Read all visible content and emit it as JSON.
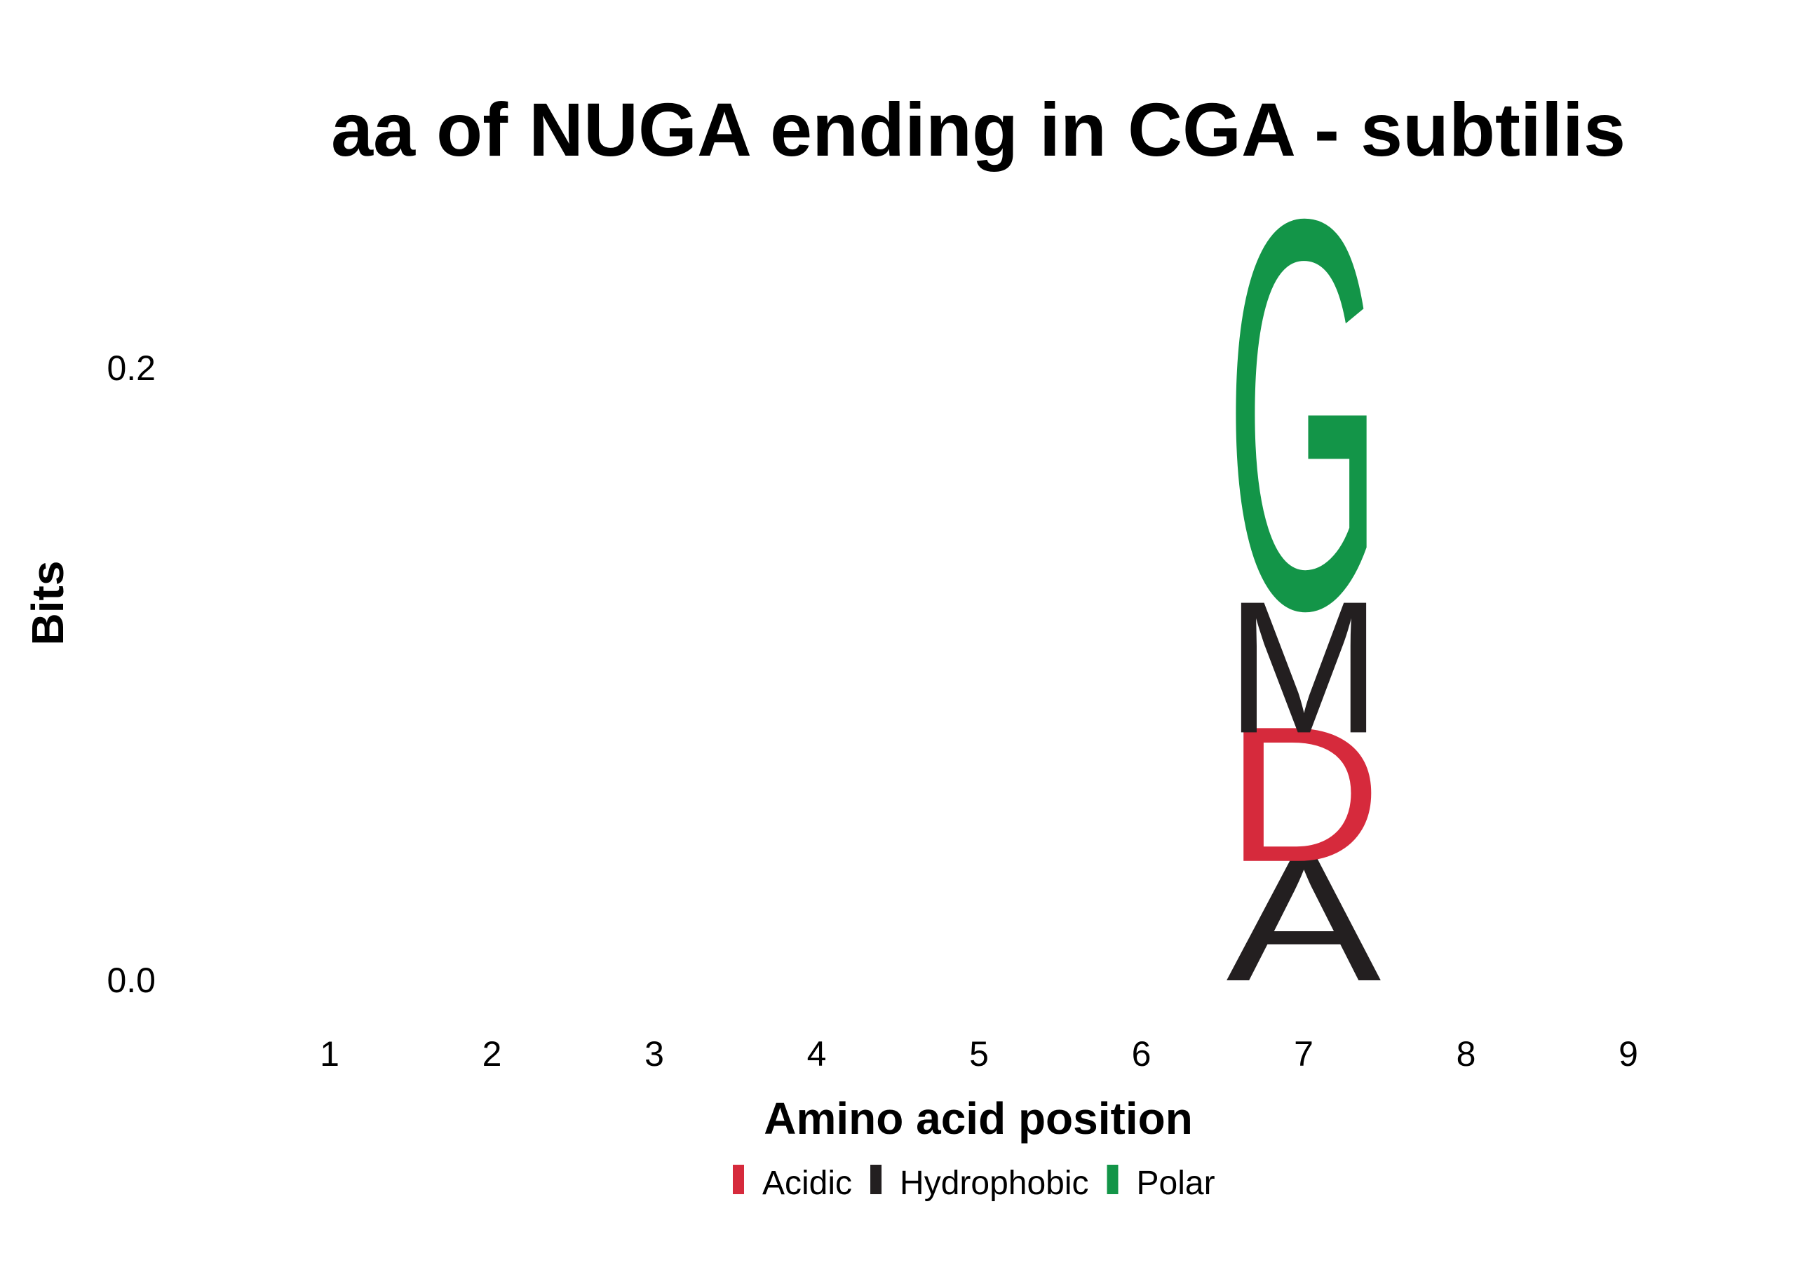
{
  "chart_data": {
    "type": "sequence-logo",
    "title": "aa of NUGA ending in CGA - subtilis",
    "xlabel": "Amino acid position",
    "ylabel": "Bits",
    "x_ticks": [
      "1",
      "2",
      "3",
      "4",
      "5",
      "6",
      "7",
      "8",
      "9"
    ],
    "y_ticks": [
      "0.0",
      "0.2"
    ],
    "ylim": [
      0,
      0.2
    ],
    "grid": false,
    "legend_position": "bottom",
    "legend": [
      {
        "name": "Acidic",
        "color": "#d62a3c"
      },
      {
        "name": "Hydrophobic",
        "color": "#231f20"
      },
      {
        "name": "Polar",
        "color": "#139548"
      }
    ],
    "stacks": [
      {
        "position": 7,
        "letters": [
          {
            "letter": "A",
            "class": "Hydrophobic",
            "bits": 0.039
          },
          {
            "letter": "D",
            "class": "Acidic",
            "bits": 0.042
          },
          {
            "letter": "M",
            "class": "Hydrophobic",
            "bits": 0.041
          },
          {
            "letter": "G",
            "class": "Polar",
            "bits": 0.121
          }
        ]
      }
    ]
  }
}
